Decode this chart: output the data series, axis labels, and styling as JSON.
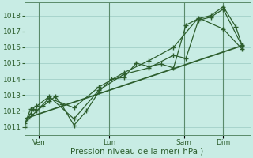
{
  "xlabel": "Pression niveau de la mer( hPa )",
  "background_color": "#c8ece4",
  "grid_color": "#a8d4cc",
  "line_color": "#2d5e2d",
  "vline_color": "#5a8a6a",
  "ylim": [
    1010.5,
    1018.8
  ],
  "xlim": [
    0,
    218
  ],
  "yticks": [
    1011,
    1012,
    1013,
    1014,
    1015,
    1016,
    1017,
    1018
  ],
  "xtick_positions": [
    14,
    82,
    154,
    192
  ],
  "xtick_labels": [
    "Ven",
    "Lun",
    "Sam",
    "Dim"
  ],
  "vline_positions": [
    14,
    82,
    154,
    192
  ],
  "series1_x": [
    0,
    3,
    6,
    9,
    12,
    18,
    24,
    30,
    36,
    48,
    60,
    72,
    84,
    96,
    108,
    120,
    132,
    144,
    156,
    168,
    180,
    192,
    204,
    210
  ],
  "series1_y": [
    1011.0,
    1011.5,
    1011.8,
    1012.1,
    1012.0,
    1012.3,
    1012.6,
    1012.9,
    1012.4,
    1011.1,
    1012.0,
    1013.2,
    1014.0,
    1014.1,
    1015.0,
    1014.8,
    1014.95,
    1014.7,
    1017.4,
    1017.8,
    1018.0,
    1018.55,
    1017.3,
    1016.15
  ],
  "series2_x": [
    0,
    6,
    12,
    24,
    48,
    72,
    96,
    120,
    144,
    156,
    168,
    180,
    192,
    210
  ],
  "series2_y": [
    1011.1,
    1012.1,
    1012.3,
    1012.9,
    1011.5,
    1013.3,
    1014.3,
    1014.7,
    1015.5,
    1015.3,
    1017.7,
    1017.9,
    1018.4,
    1016.1
  ],
  "series3_x": [
    0,
    24,
    48,
    72,
    96,
    120,
    144,
    168,
    192,
    210
  ],
  "series3_y": [
    1011.2,
    1012.8,
    1012.2,
    1013.5,
    1014.4,
    1015.15,
    1016.0,
    1017.85,
    1017.15,
    1015.9
  ],
  "trend_x": [
    0,
    210
  ],
  "trend_y": [
    1011.5,
    1016.1
  ],
  "xlabel_fontsize": 7.5,
  "tick_fontsize": 6.5
}
